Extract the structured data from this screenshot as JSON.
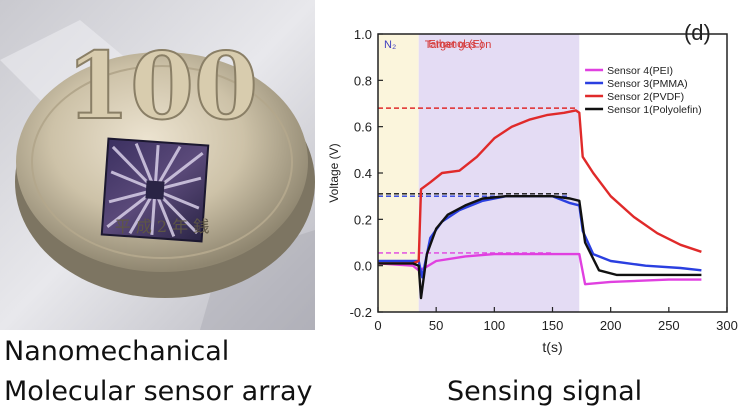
{
  "captions": {
    "photo_line1": "Nanomechanical",
    "photo_line2": "Molecular sensor array",
    "chart_caption": "Sensing signal"
  },
  "coin_text": {
    "denomination": "100",
    "era_marks": "平 成 2 年 銭"
  },
  "chart_data": {
    "type": "line",
    "panel_label": "(d)",
    "xlabel": "t(s)",
    "ylabel": "Voltage (V)",
    "xlim": [
      0,
      300
    ],
    "ylim": [
      -0.2,
      1.0
    ],
    "xticks": [
      0,
      50,
      100,
      150,
      200,
      250,
      300
    ],
    "yticks": [
      -0.2,
      0.0,
      0.2,
      0.4,
      0.6,
      0.8,
      1.0
    ],
    "regions": [
      {
        "label": "N₂",
        "x_start": 0,
        "x_end": 35,
        "color": "#fbf5dc",
        "label_color": "#3d3dbf"
      },
      {
        "label": "Target gas on",
        "x_start": 35,
        "x_end": 173,
        "color": "#e4dcf4",
        "label_color": "#d63a3a"
      }
    ],
    "annotations": [
      {
        "text": "Ethanol  (E)",
        "x": 67,
        "y": 0.96,
        "color": "#d63a3a"
      }
    ],
    "series": [
      {
        "name": "Sensor 4(PEI)",
        "color": "#e040e0",
        "x": [
          0,
          30,
          35,
          40,
          50,
          75,
          100,
          125,
          150,
          173,
          178,
          200,
          250,
          278
        ],
        "y": [
          0.01,
          0.0,
          -0.02,
          -0.01,
          0.02,
          0.04,
          0.05,
          0.05,
          0.05,
          0.05,
          -0.08,
          -0.07,
          -0.06,
          -0.06
        ],
        "dashed_level": 0.055,
        "dash_x": [
          0,
          150
        ]
      },
      {
        "name": "Sensor 3(PMMA)",
        "color": "#2a3fe0",
        "x": [
          0,
          30,
          35,
          38,
          45,
          55,
          70,
          90,
          110,
          130,
          150,
          165,
          173,
          176,
          185,
          200,
          230,
          260,
          278
        ],
        "y": [
          0.02,
          0.02,
          0.02,
          -0.05,
          0.12,
          0.19,
          0.24,
          0.28,
          0.3,
          0.3,
          0.3,
          0.27,
          0.26,
          0.15,
          0.05,
          0.02,
          0.0,
          -0.01,
          -0.02
        ],
        "dashed_level": 0.3,
        "dash_x": [
          0,
          165
        ]
      },
      {
        "name": "Sensor 2(PVDF)",
        "color": "#e02a2a",
        "x": [
          0,
          30,
          35,
          37,
          45,
          55,
          70,
          85,
          100,
          115,
          130,
          145,
          160,
          170,
          173,
          176,
          185,
          200,
          220,
          240,
          260,
          278
        ],
        "y": [
          0.01,
          0.01,
          0.02,
          0.33,
          0.36,
          0.4,
          0.41,
          0.47,
          0.55,
          0.6,
          0.63,
          0.65,
          0.66,
          0.67,
          0.66,
          0.47,
          0.4,
          0.3,
          0.21,
          0.14,
          0.09,
          0.06
        ],
        "dashed_level": 0.68,
        "dash_x": [
          0,
          170
        ]
      },
      {
        "name": "Sensor 1(Polyolefin)",
        "color": "#111111",
        "x": [
          0,
          30,
          35,
          37,
          42,
          50,
          60,
          75,
          90,
          110,
          130,
          150,
          165,
          173,
          178,
          190,
          205,
          230,
          260,
          278
        ],
        "y": [
          0.01,
          0.01,
          0.0,
          -0.14,
          0.05,
          0.16,
          0.22,
          0.26,
          0.29,
          0.3,
          0.3,
          0.3,
          0.29,
          0.28,
          0.1,
          -0.02,
          -0.04,
          -0.04,
          -0.04,
          -0.04
        ],
        "dashed_level": 0.31,
        "dash_x": [
          0,
          165
        ]
      }
    ],
    "legend_order": [
      "Sensor 4(PEI)",
      "Sensor 3(PMMA)",
      "Sensor 2(PVDF)",
      "Sensor 1(Polyolefin)"
    ],
    "legend_position": "top-right",
    "grid": false
  }
}
